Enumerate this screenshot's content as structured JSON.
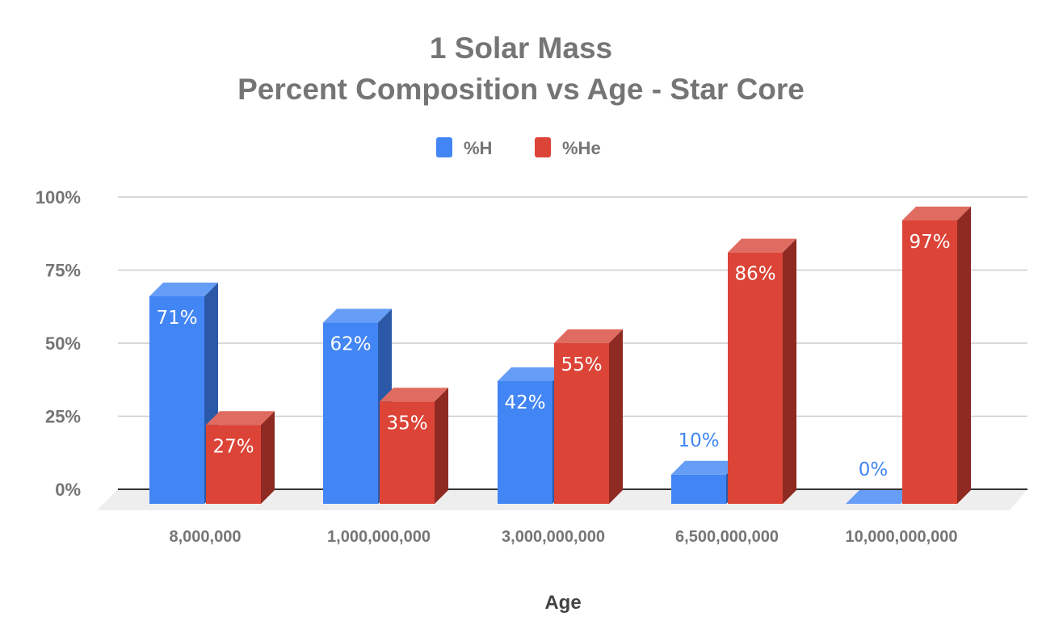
{
  "chart_data": {
    "type": "bar",
    "style": "3d-clustered-column",
    "title_lines": [
      "1 Solar Mass",
      "Percent Composition vs Age - Star Core"
    ],
    "xlabel": "Age",
    "ylabel": "",
    "categories": [
      "8,000,000",
      "1,000,000,000",
      "3,000,000,000",
      "6,500,000,000",
      "10,000,000,000"
    ],
    "series": [
      {
        "name": "%H",
        "color": "#4285f4",
        "top_color": "#669df6",
        "side_color": "#2b59a8",
        "values": [
          71,
          62,
          42,
          10,
          0
        ],
        "labels": [
          "71%",
          "62%",
          "42%",
          "10%",
          "0%"
        ]
      },
      {
        "name": "%He",
        "color": "#db4437",
        "top_color": "#e06b60",
        "side_color": "#8e2a22",
        "values": [
          27,
          35,
          55,
          86,
          97
        ],
        "labels": [
          "27%",
          "35%",
          "55%",
          "86%",
          "97%"
        ]
      }
    ],
    "yticks": [
      0,
      25,
      50,
      75,
      100
    ],
    "ytick_labels": [
      "0%",
      "25%",
      "50%",
      "75%",
      "100%"
    ],
    "ylim": [
      0,
      100
    ],
    "grid": true,
    "legend": {
      "position": "top-center",
      "entries": [
        "%H",
        "%He"
      ]
    }
  }
}
